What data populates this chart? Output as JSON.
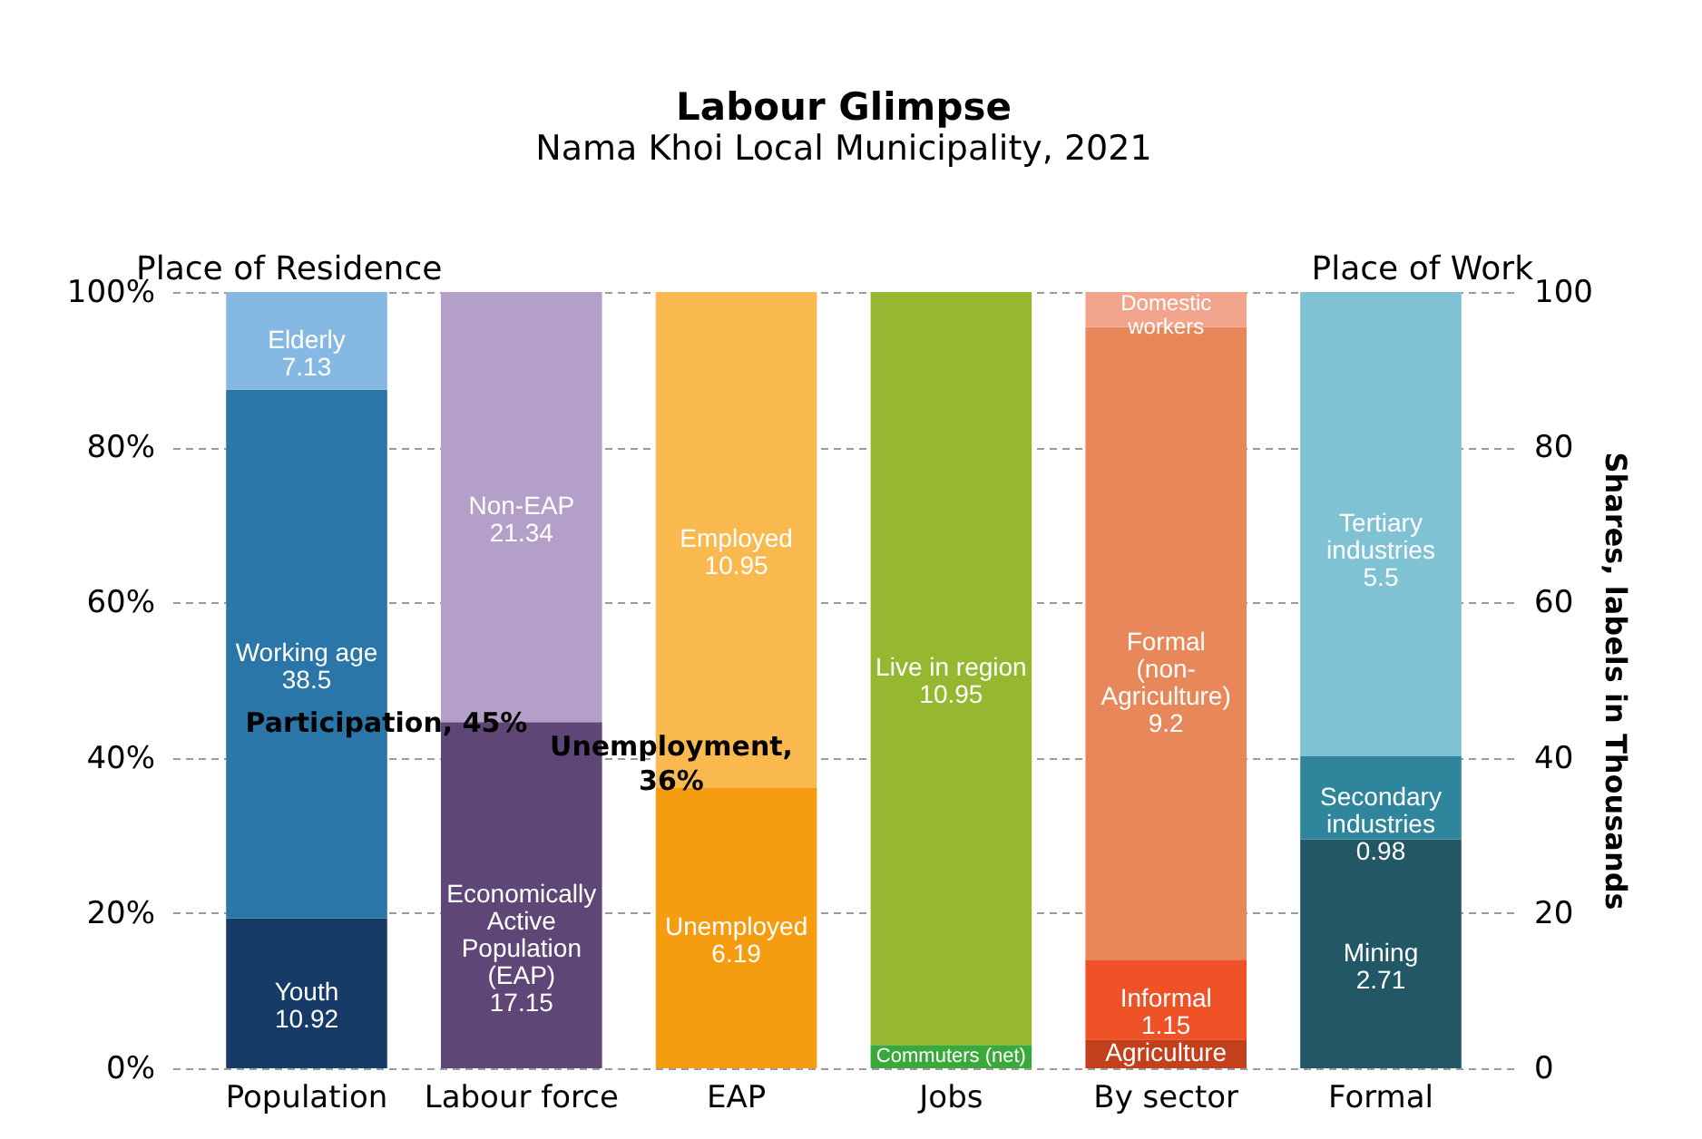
{
  "chart_data": {
    "type": "bar",
    "stacked": true,
    "title": "Labour Glimpse",
    "subtitle": "Nama Khoi Local Municipality, 2021",
    "y2label": "Shares, labels in Thousands",
    "categories": [
      "Population",
      "Labour force",
      "EAP",
      "Jobs",
      "By sector",
      "Formal"
    ],
    "series": [
      {
        "name": "Youth\n10.92",
        "color": "#163b66",
        "values": [
          19.3,
          null,
          null,
          null,
          null,
          null
        ]
      },
      {
        "name": "Working age\n38.5",
        "color": "#2a76a8",
        "values": [
          68.1,
          null,
          null,
          null,
          null,
          null
        ]
      },
      {
        "name": "Elderly\n7.13",
        "color": "#85b9e3",
        "values": [
          12.6,
          null,
          null,
          null,
          null,
          null
        ]
      },
      {
        "name": "Economically Active Population (EAP)\n17.15",
        "color": "#5e4677",
        "values": [
          null,
          44.6,
          null,
          null,
          null,
          null
        ]
      },
      {
        "name": "Non-EAP\n21.34",
        "color": "#b39fc7",
        "values": [
          null,
          55.4,
          null,
          null,
          null,
          null
        ]
      },
      {
        "name": "Unemployed\n6.19",
        "color": "#f59c10",
        "values": [
          null,
          null,
          36.1,
          null,
          null,
          null
        ]
      },
      {
        "name": "Employed\n10.95",
        "color": "#f9b94e",
        "values": [
          null,
          null,
          63.9,
          null,
          null,
          null
        ]
      },
      {
        "name": "Commuters (net)",
        "color": "#3aa83a",
        "values": [
          null,
          null,
          null,
          3,
          null,
          null
        ]
      },
      {
        "name": "Live in region\n10.95",
        "color": "#96b830",
        "values": [
          null,
          null,
          null,
          97,
          null,
          null
        ]
      },
      {
        "name": "Agriculture",
        "color": "#c2401c",
        "values": [
          null,
          null,
          null,
          null,
          3.7,
          null
        ]
      },
      {
        "name": "Informal\n1.15",
        "color": "#ee5226",
        "values": [
          null,
          null,
          null,
          null,
          10.3,
          null
        ]
      },
      {
        "name": "Formal (non-Agriculture)\n9.2",
        "color": "#e8875a",
        "values": [
          null,
          null,
          null,
          null,
          81.5,
          null
        ]
      },
      {
        "name": "Domestic workers",
        "color": "#f2a58c",
        "values": [
          null,
          null,
          null,
          null,
          4.5,
          null
        ]
      },
      {
        "name": "Mining\n2.71",
        "color": "#225866",
        "values": [
          null,
          null,
          null,
          null,
          null,
          29.5
        ]
      },
      {
        "name": "Secondary industries\n0.98",
        "color": "#2f859b",
        "values": [
          null,
          null,
          null,
          null,
          null,
          10.7
        ]
      },
      {
        "name": "Tertiary industries\n5.5",
        "color": "#7fc2d4",
        "values": [
          null,
          null,
          null,
          null,
          null,
          59.8
        ]
      }
    ],
    "ylim": [
      0,
      100
    ],
    "yticks": [
      {
        "value": 0,
        "label": "0%"
      },
      {
        "value": 20,
        "label": "20%"
      },
      {
        "value": 40,
        "label": "40%"
      },
      {
        "value": 60,
        "label": "60%"
      },
      {
        "value": 80,
        "label": "80%"
      },
      {
        "value": 100,
        "label": "100%"
      }
    ],
    "y2lim": [
      0,
      100
    ],
    "y2ticks": [
      0,
      20,
      40,
      60,
      80,
      100
    ],
    "grid": "y",
    "legend": false,
    "annotations": [
      "Place of Residence",
      "Place of Work",
      "Participation, 45%",
      "Unemployment, 36%"
    ]
  }
}
